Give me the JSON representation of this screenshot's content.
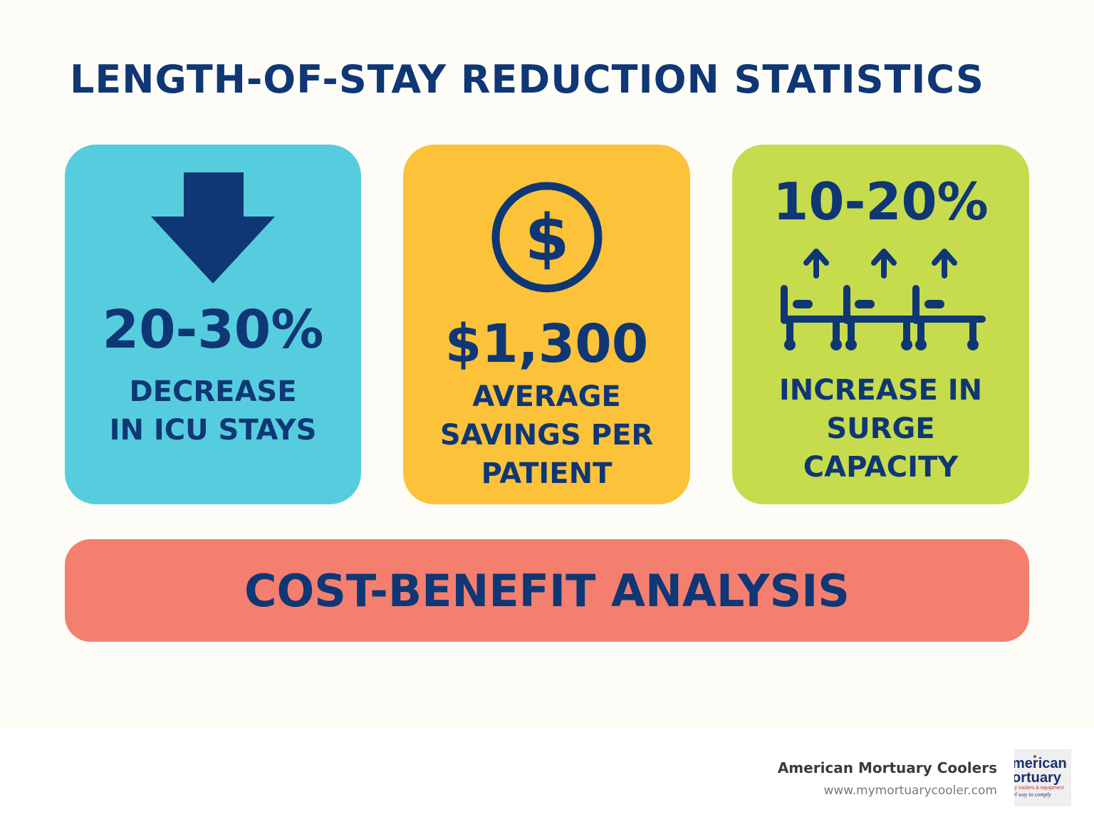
{
  "title": "LENGTH-OF-STAY REDUCTION STATISTICS",
  "cards": [
    {
      "stat": "20-30%",
      "label_lines": [
        "DECREASE",
        "IN ICU STAYS"
      ],
      "icon": "arrow-down-icon",
      "color": "#56cddf"
    },
    {
      "stat": "$1,300",
      "label_lines": [
        "AVERAGE",
        "SAVINGS PER",
        "PATIENT"
      ],
      "icon": "dollar-coin-icon",
      "color": "#fbc23a"
    },
    {
      "stat": "10-20%",
      "label_lines": [
        "INCREASE IN",
        "SURGE",
        "CAPACITY"
      ],
      "icon": "hospital-beds-arrows-icon",
      "color": "#c6dc4d"
    }
  ],
  "banner": {
    "text": "COST-BENEFIT ANALYSIS",
    "color": "#f47f6f"
  },
  "footer": {
    "company": "American Mortuary Coolers",
    "url": "www.mymortuarycooler.com",
    "logo_icon": "american-mortuary-logo",
    "logo_text": [
      "merican",
      "ortuary",
      "ry coolers & equipment",
      "el way to comply"
    ]
  },
  "colors": {
    "text": "#0f3775",
    "background": "#fdfcf6"
  }
}
